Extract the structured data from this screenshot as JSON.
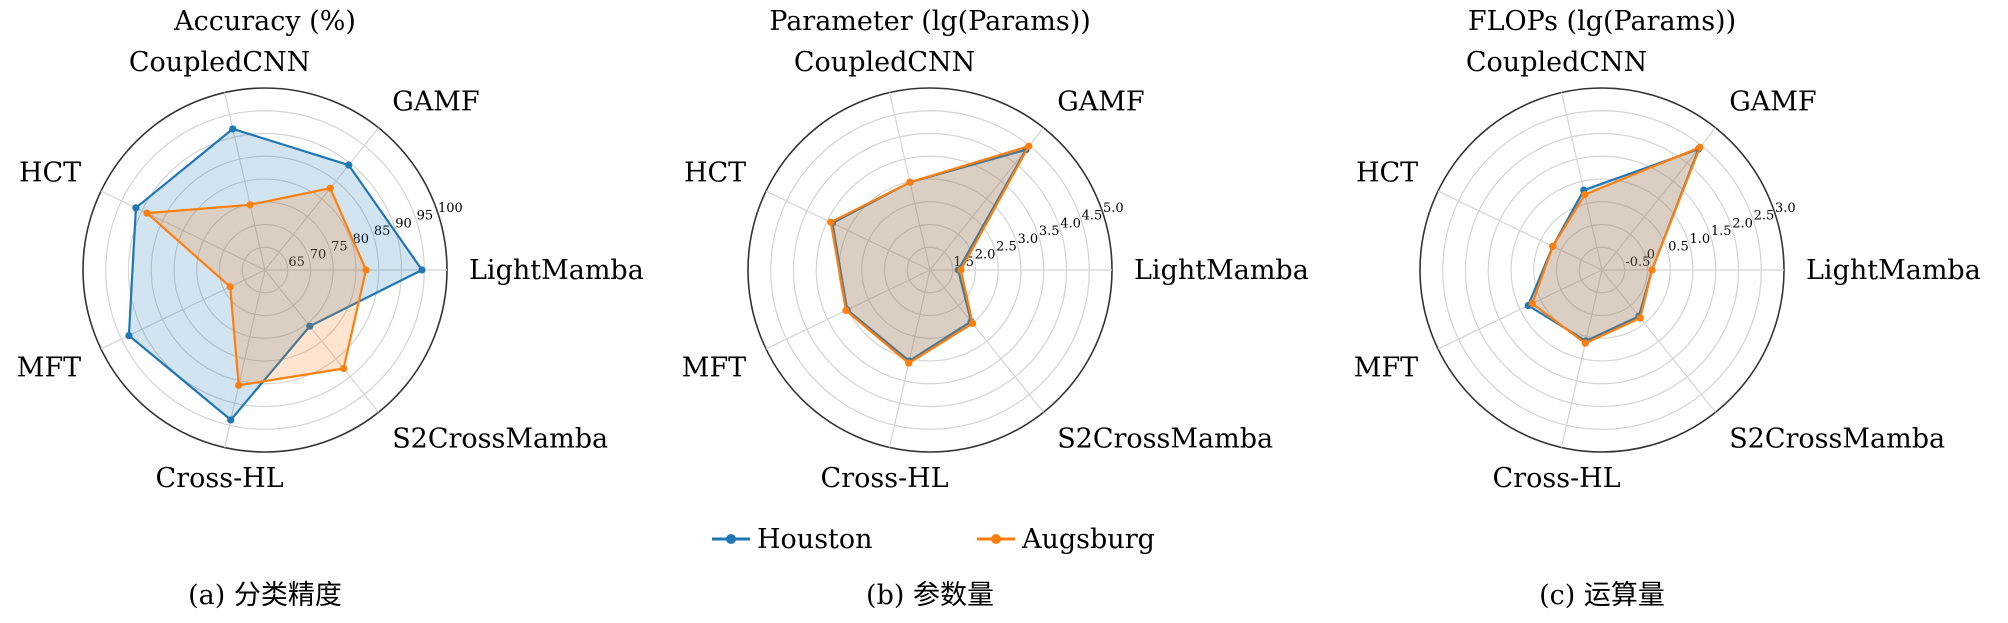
{
  "categories": [
    "LightMamba",
    "GAMF",
    "CoupledCNN",
    "HCT",
    "MFT",
    "Cross-HL",
    "S2CrossMamba"
  ],
  "legend": [
    {
      "name": "Houston",
      "color": "#1f77b4"
    },
    {
      "name": "Augsburg",
      "color": "#ff7f0e"
    }
  ],
  "chart_data": [
    {
      "type": "radar",
      "title": "Accuracy (%)",
      "caption": "(a) 分类精度",
      "rlim": [
        60,
        100
      ],
      "rticks": [
        "65",
        "70",
        "75",
        "80",
        "85",
        "90",
        "95",
        "100"
      ],
      "rtick_values": [
        65,
        70,
        75,
        80,
        85,
        90,
        95,
        100
      ],
      "categories": [
        "LightMamba",
        "GAMF",
        "CoupledCNN",
        "HCT",
        "MFT",
        "Cross-HL",
        "S2CrossMamba"
      ],
      "series": [
        {
          "name": "Houston",
          "values": [
            94.5,
            89.5,
            91.8,
            91.5,
            93.2,
            93.8,
            75.8
          ]
        },
        {
          "name": "Augsburg",
          "values": [
            82.2,
            83.0,
            74.7,
            88.8,
            68.5,
            86.0,
            87.7
          ]
        }
      ],
      "grid": true
    },
    {
      "type": "radar",
      "title": "Parameter (lg(Params))",
      "caption": "(b) 参数量",
      "rlim": [
        1.0,
        5.0
      ],
      "rticks": [
        "1.5",
        "2.0",
        "2.5",
        "3.0",
        "3.5",
        "4.0",
        "4.5",
        "5.0"
      ],
      "rtick_values": [
        1.5,
        2.0,
        2.5,
        3.0,
        3.5,
        4.0,
        4.5,
        5.0
      ],
      "categories": [
        "LightMamba",
        "GAMF",
        "CoupledCNN",
        "HCT",
        "MFT",
        "Cross-HL",
        "S2CrossMamba"
      ],
      "series": [
        {
          "name": "Houston",
          "values": [
            1.62,
            4.38,
            2.98,
            3.38,
            3.02,
            3.05,
            2.45
          ]
        },
        {
          "name": "Augsburg",
          "values": [
            1.68,
            4.48,
            2.98,
            3.42,
            3.05,
            3.1,
            2.5
          ]
        }
      ],
      "grid": true
    },
    {
      "type": "radar",
      "title": "FLOPs (lg(Params))",
      "caption": "(c) 运算量",
      "rlim": [
        -1.0,
        3.0
      ],
      "rticks": [
        "-0.5",
        "0",
        "0.5",
        "1.0",
        "1.5",
        "2.0",
        "2.5",
        "3.0"
      ],
      "rtick_values": [
        -0.5,
        0.0,
        0.5,
        1.0,
        1.5,
        2.0,
        2.5,
        3.0
      ],
      "categories": [
        "LightMamba",
        "GAMF",
        "CoupledCNN",
        "HCT",
        "MFT",
        "Cross-HL",
        "S2CrossMamba"
      ],
      "series": [
        {
          "name": "Houston",
          "values": [
            0.1,
            2.4,
            0.8,
            0.2,
            0.8,
            0.6,
            0.3
          ]
        },
        {
          "name": "Augsburg",
          "values": [
            0.1,
            2.45,
            0.7,
            0.2,
            0.7,
            0.65,
            0.35
          ]
        }
      ],
      "grid": true
    }
  ]
}
